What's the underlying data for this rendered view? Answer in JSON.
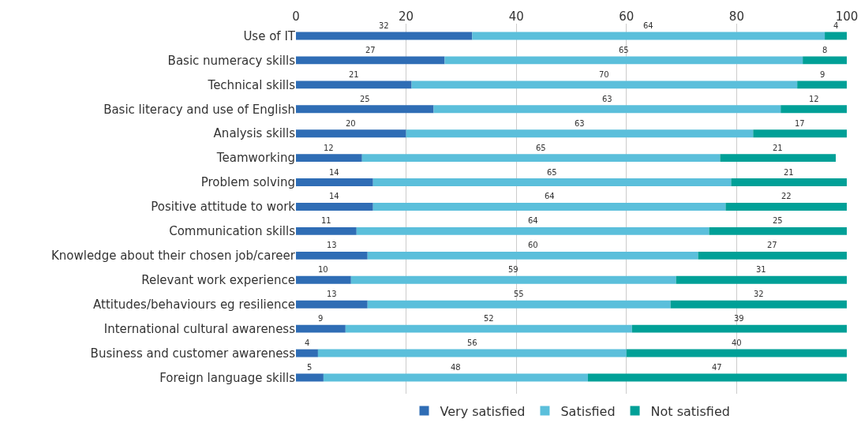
{
  "chart_data": {
    "type": "bar",
    "orientation": "horizontal",
    "stacked": true,
    "data_labels": true,
    "grid": "x",
    "legend": "bottom",
    "categories": [
      "Use of IT",
      "Basic numeracy skills",
      "Technical skills",
      "Basic literacy and use of English",
      "Analysis skills",
      "Teamworking",
      "Problem solving",
      "Positive attitude to work",
      "Communication skills",
      "Knowledge about their chosen job/career",
      "Relevant work experience",
      "Attitudes/behaviours eg resilience",
      "International cultural awareness",
      "Business and customer awareness",
      "Foreign language skills"
    ],
    "series": [
      {
        "name": "Very satisfied",
        "color": "#2f6db5",
        "values": [
          32,
          27,
          21,
          25,
          20,
          12,
          14,
          14,
          11,
          13,
          10,
          13,
          9,
          4,
          5
        ]
      },
      {
        "name": "Satisfied",
        "color": "#5bbfdb",
        "values": [
          64,
          65,
          70,
          63,
          63,
          65,
          65,
          64,
          64,
          60,
          59,
          55,
          52,
          56,
          48
        ]
      },
      {
        "name": "Not satisfied",
        "color": "#00a097",
        "values": [
          4,
          8,
          9,
          12,
          17,
          21,
          21,
          22,
          25,
          27,
          31,
          32,
          39,
          40,
          47
        ]
      }
    ],
    "xlim": [
      0,
      100
    ],
    "xticks": [
      0,
      20,
      40,
      60,
      80,
      100
    ]
  }
}
